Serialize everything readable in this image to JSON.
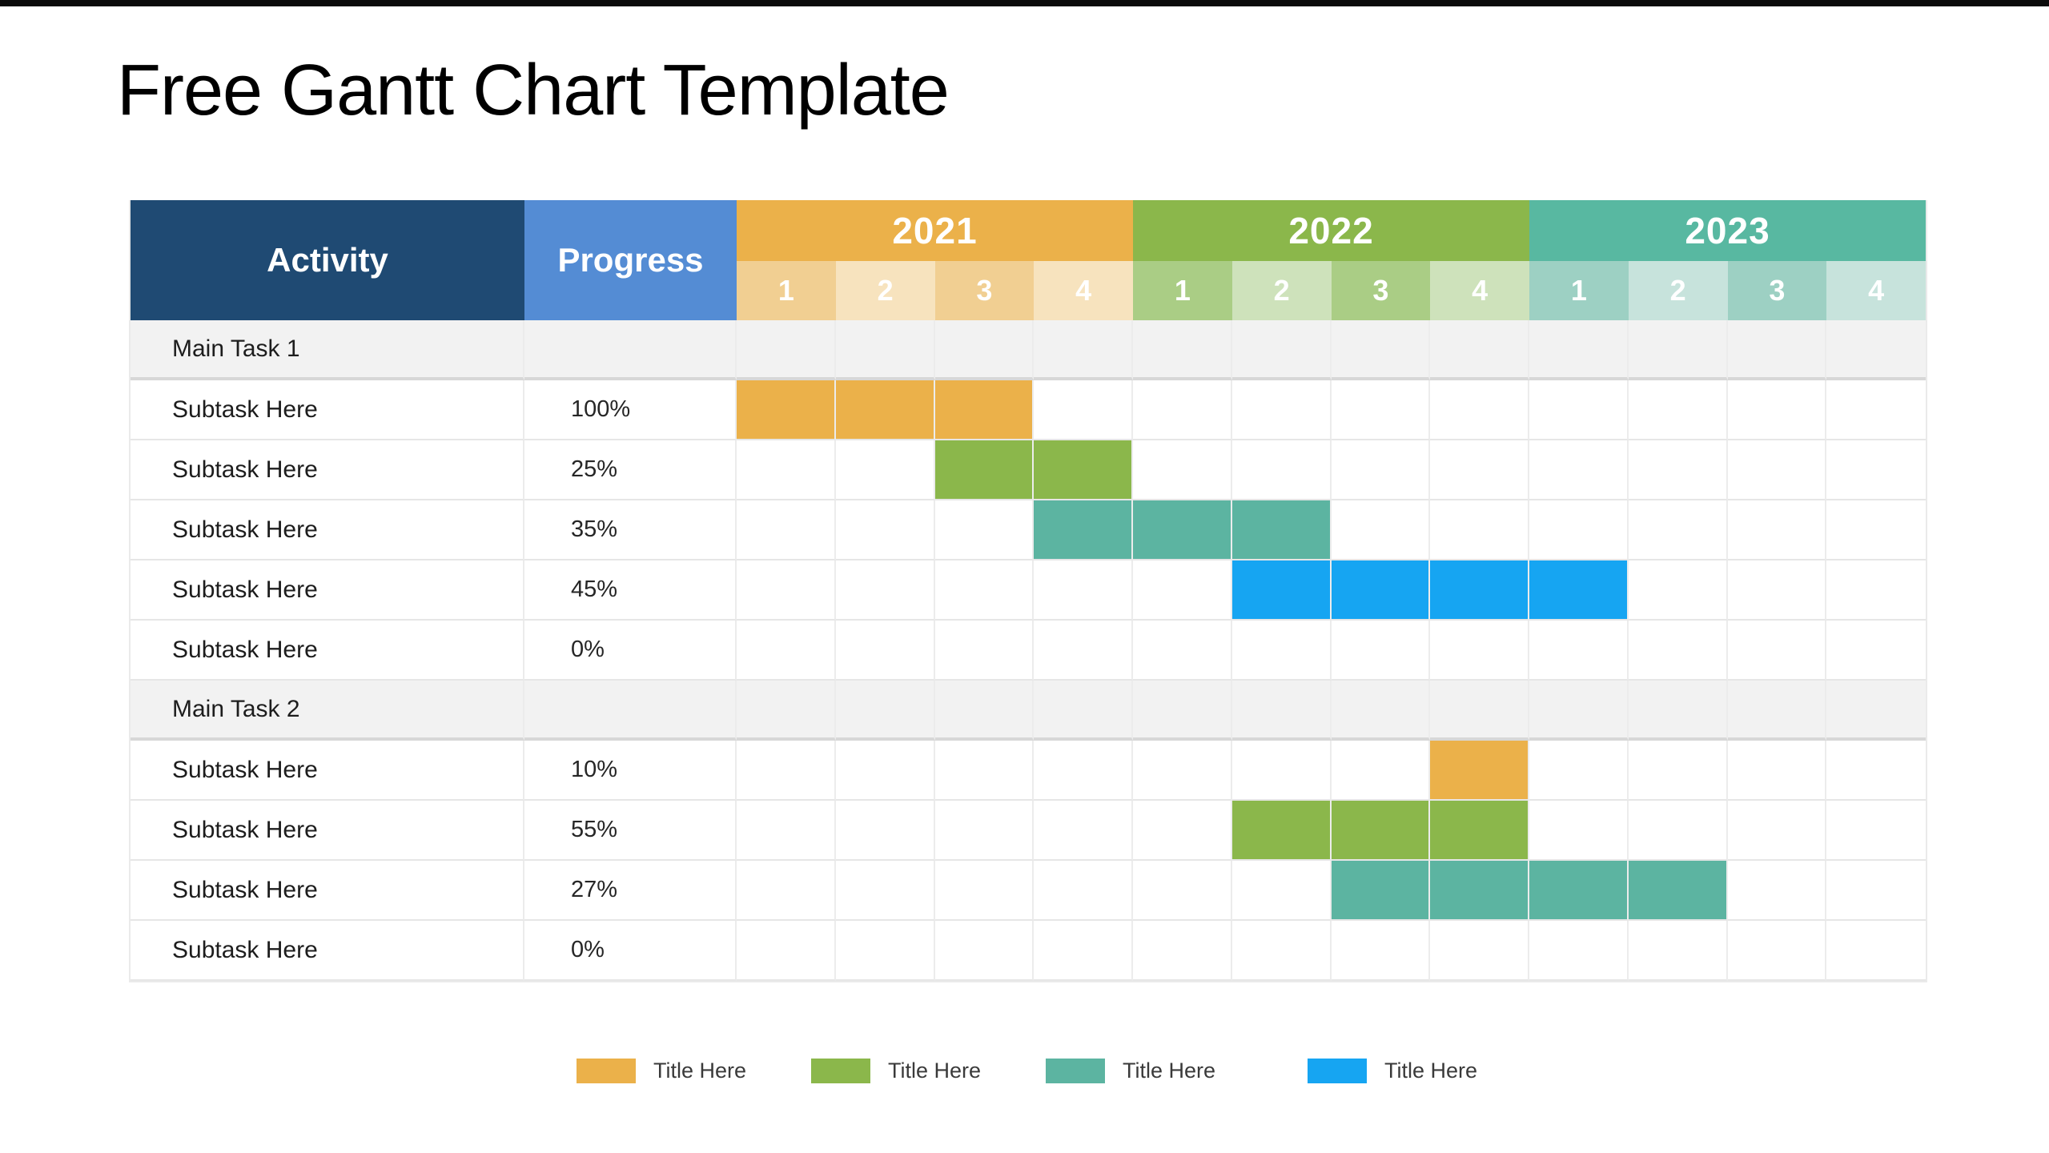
{
  "title": "Free Gantt Chart Template",
  "table": {
    "columns": {
      "activity": "Activity",
      "progress": "Progress"
    },
    "years": [
      {
        "label": "2021",
        "quarters": [
          "1",
          "2",
          "3",
          "4"
        ]
      },
      {
        "label": "2022",
        "quarters": [
          "1",
          "2",
          "3",
          "4"
        ]
      },
      {
        "label": "2023",
        "quarters": [
          "1",
          "2",
          "3",
          "4"
        ]
      }
    ],
    "rows": [
      {
        "type": "main",
        "activity": "Main Task 1",
        "progress": "",
        "bar": null
      },
      {
        "type": "sub",
        "activity": "Subtask Here",
        "progress": "100%",
        "bar": {
          "color": "orange",
          "start": 0,
          "span": 3
        }
      },
      {
        "type": "sub",
        "activity": "Subtask Here",
        "progress": "25%",
        "bar": {
          "color": "green",
          "start": 2,
          "span": 2
        }
      },
      {
        "type": "sub",
        "activity": "Subtask Here",
        "progress": "35%",
        "bar": {
          "color": "teal",
          "start": 3,
          "span": 3
        }
      },
      {
        "type": "sub",
        "activity": "Subtask Here",
        "progress": "45%",
        "bar": {
          "color": "blue",
          "start": 5,
          "span": 4
        }
      },
      {
        "type": "sub",
        "activity": "Subtask Here",
        "progress": "0%",
        "bar": null
      },
      {
        "type": "main",
        "activity": "Main Task 2",
        "progress": "",
        "bar": null
      },
      {
        "type": "sub",
        "activity": "Subtask Here",
        "progress": "10%",
        "bar": {
          "color": "orange",
          "start": 7,
          "span": 1
        }
      },
      {
        "type": "sub",
        "activity": "Subtask Here",
        "progress": "55%",
        "bar": {
          "color": "green",
          "start": 5,
          "span": 3
        }
      },
      {
        "type": "sub",
        "activity": "Subtask Here",
        "progress": "27%",
        "bar": {
          "color": "teal",
          "start": 6,
          "span": 4
        }
      },
      {
        "type": "sub",
        "activity": "Subtask Here",
        "progress": "0%",
        "bar": null
      }
    ]
  },
  "legend": [
    {
      "color": "orange",
      "label": "Title Here"
    },
    {
      "color": "green",
      "label": "Title Here"
    },
    {
      "color": "teal",
      "label": "Title Here"
    },
    {
      "color": "blue",
      "label": "Title Here"
    }
  ],
  "colors": {
    "header_navy": "#1F4A73",
    "header_blue": "#548CD4",
    "year_2021": "#EBB14A",
    "year_2022": "#8BB74B",
    "year_2023": "#58B8A1",
    "q_2021_dark": "#F1CF92",
    "q_2021_light": "#F7E3BE",
    "q_2022_dark": "#AACD85",
    "q_2022_light": "#CEE2BB",
    "q_2023_dark": "#9DD0C3",
    "q_2023_light": "#C7E3DC",
    "bar_orange": "#EBB14A",
    "bar_green": "#8BB74B",
    "bar_teal": "#5CB4A1",
    "bar_blue": "#16A5F2"
  },
  "chart_data": {
    "type": "gantt",
    "title": "Free Gantt Chart Template",
    "timeline": {
      "years": [
        "2021",
        "2022",
        "2023"
      ],
      "quarters_per_year": 4,
      "quarter_labels": [
        "1",
        "2",
        "3",
        "4"
      ]
    },
    "tasks": [
      {
        "name": "Main Task 1",
        "group": true
      },
      {
        "name": "Subtask Here",
        "progress_pct": 100,
        "start": "2021 Q1",
        "end": "2021 Q3",
        "color": "#EBB14A"
      },
      {
        "name": "Subtask Here",
        "progress_pct": 25,
        "start": "2021 Q3",
        "end": "2021 Q4",
        "color": "#8BB74B"
      },
      {
        "name": "Subtask Here",
        "progress_pct": 35,
        "start": "2021 Q4",
        "end": "2022 Q2",
        "color": "#5CB4A1"
      },
      {
        "name": "Subtask Here",
        "progress_pct": 45,
        "start": "2022 Q2",
        "end": "2023 Q1",
        "color": "#16A5F2"
      },
      {
        "name": "Subtask Here",
        "progress_pct": 0,
        "start": null,
        "end": null,
        "color": null
      },
      {
        "name": "Main Task 2",
        "group": true
      },
      {
        "name": "Subtask Here",
        "progress_pct": 10,
        "start": "2022 Q4",
        "end": "2022 Q4",
        "color": "#EBB14A"
      },
      {
        "name": "Subtask Here",
        "progress_pct": 55,
        "start": "2022 Q2",
        "end": "2022 Q4",
        "color": "#8BB74B"
      },
      {
        "name": "Subtask Here",
        "progress_pct": 27,
        "start": "2022 Q3",
        "end": "2023 Q2",
        "color": "#5CB4A1"
      },
      {
        "name": "Subtask Here",
        "progress_pct": 0,
        "start": null,
        "end": null,
        "color": null
      }
    ],
    "legend": [
      {
        "label": "Title Here",
        "color": "#EBB14A"
      },
      {
        "label": "Title Here",
        "color": "#8BB74B"
      },
      {
        "label": "Title Here",
        "color": "#5CB4A1"
      },
      {
        "label": "Title Here",
        "color": "#16A5F2"
      }
    ],
    "legend_position": "bottom"
  }
}
